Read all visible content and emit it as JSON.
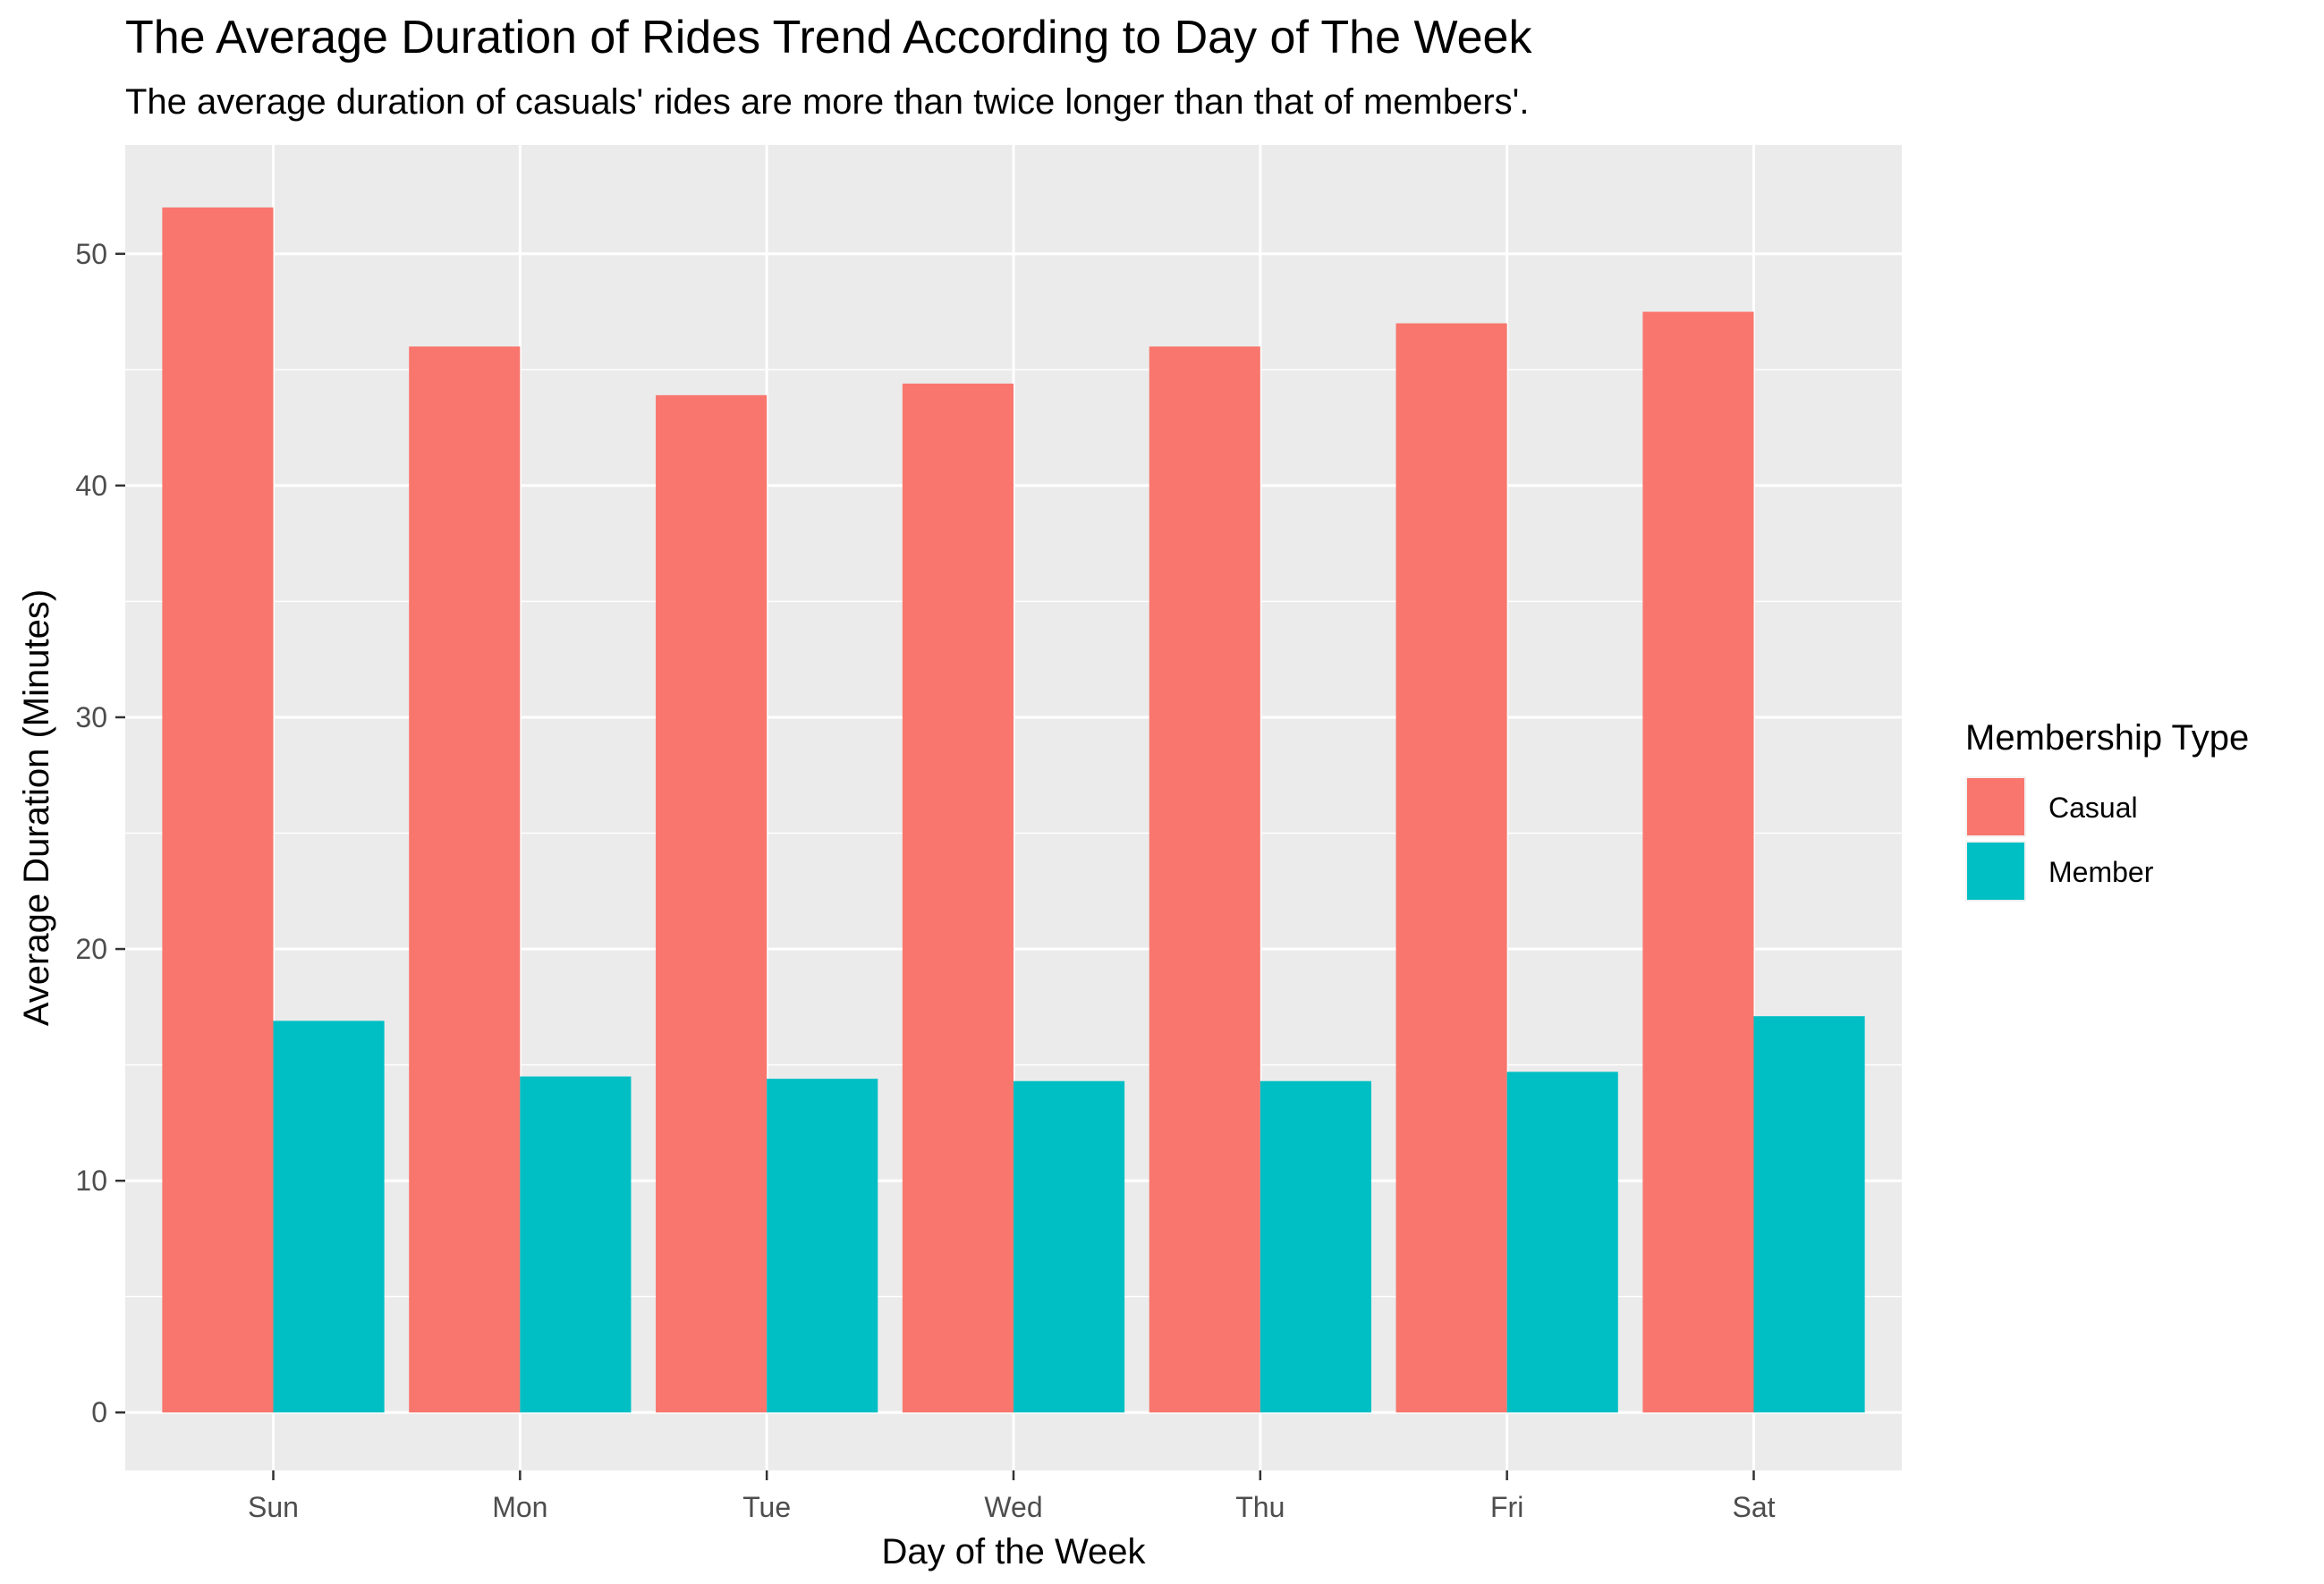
{
  "chart_data": {
    "type": "bar",
    "title": "The Average Duration of Rides Trend According to Day of The Week",
    "subtitle": "The average duration of casuals' rides are more than twice longer than that of members'.",
    "xlabel": "Day of the Week",
    "ylabel": "Average Duration (Minutes)",
    "categories": [
      "Sun",
      "Mon",
      "Tue",
      "Wed",
      "Thu",
      "Fri",
      "Sat"
    ],
    "series": [
      {
        "name": "Casual",
        "color": "#F8766D",
        "values": [
          52.0,
          46.0,
          43.9,
          44.4,
          46.0,
          47.0,
          47.5
        ]
      },
      {
        "name": "Member",
        "color": "#00BFC4",
        "values": [
          16.9,
          14.5,
          14.4,
          14.3,
          14.3,
          14.7,
          17.1
        ]
      }
    ],
    "ylim": [
      -2.5,
      54.7
    ],
    "yticks": [
      0,
      10,
      20,
      30,
      40,
      50
    ],
    "grid": true,
    "panel_background": "#EBEBEB",
    "gridline_color": "#FFFFFF",
    "legend": {
      "title": "Membership Type",
      "position": "right"
    }
  }
}
